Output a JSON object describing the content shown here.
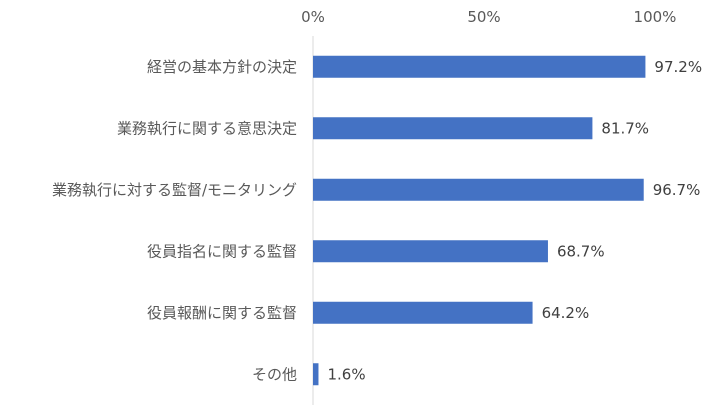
{
  "chart_data": {
    "type": "bar",
    "orientation": "horizontal",
    "categories": [
      "経営の基本方針の決定",
      "業務執行に関する意思決定",
      "業務執行に対する監督/モニタリング",
      "役員指名に関する監督",
      "役員報酬に関する監督",
      "その他"
    ],
    "values": [
      97.2,
      81.7,
      96.7,
      68.7,
      64.2,
      1.6
    ],
    "value_labels": [
      "97.2%",
      "81.7%",
      "96.7%",
      "68.7%",
      "64.2%",
      "1.6%"
    ],
    "xlim": [
      0,
      100
    ],
    "x_ticks": [
      0,
      50,
      100
    ],
    "x_tick_labels": [
      "0%",
      "50%",
      "100%"
    ],
    "axis_position": "top",
    "grid": false,
    "bar_color": "#4472C4",
    "axis_color": "#D9D9D9"
  }
}
